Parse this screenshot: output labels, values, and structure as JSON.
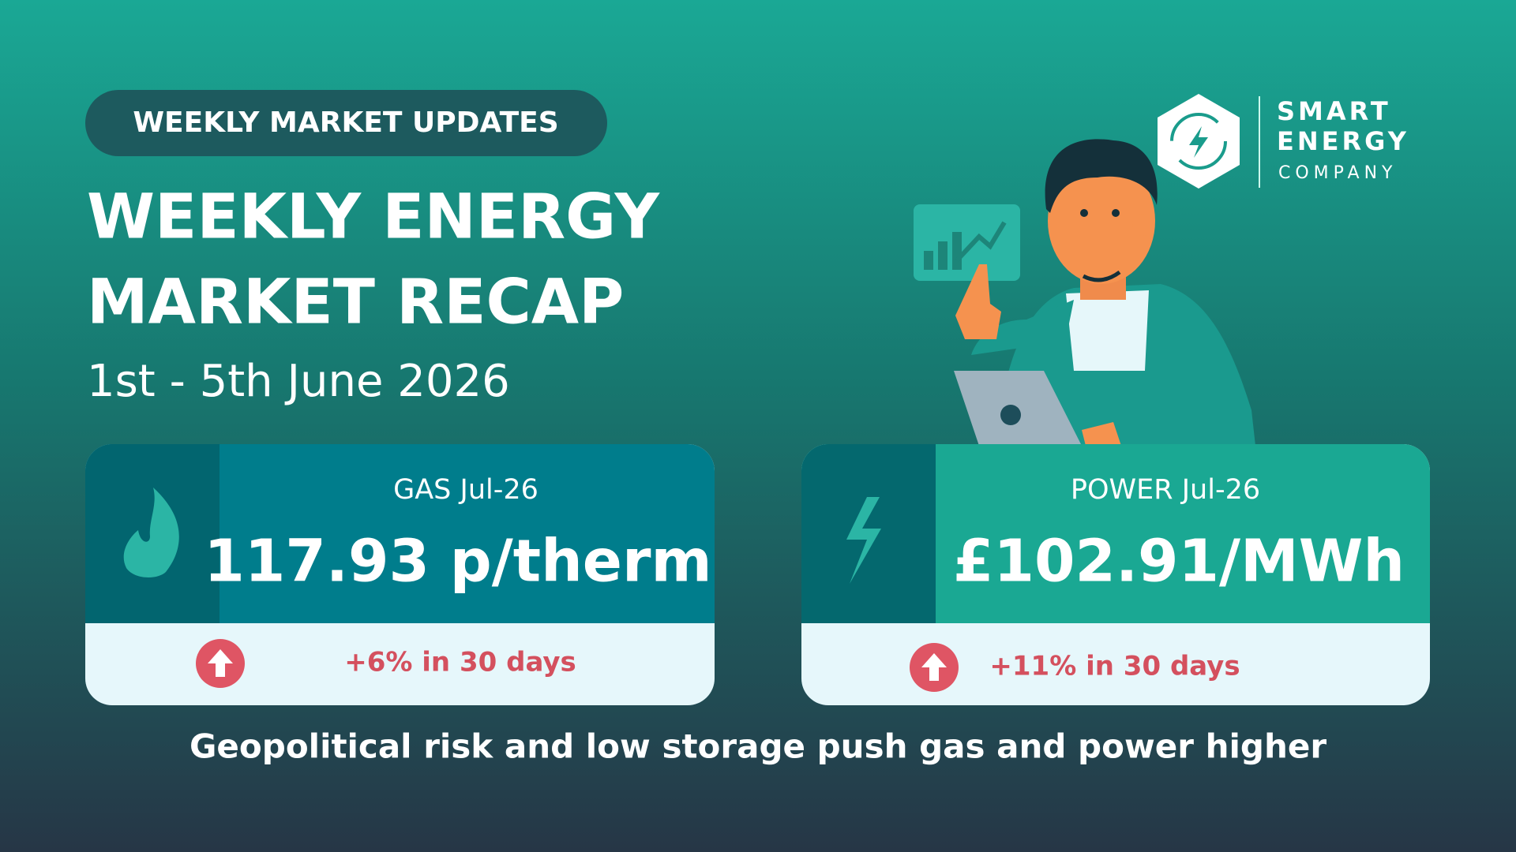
{
  "badge": "WEEKLY MARKET UPDATES",
  "title": [
    "WEEKLY ENERGY",
    "MARKET RECAP"
  ],
  "date_range": "1st - 5th June 2026",
  "logo": {
    "line1": "SMART",
    "line2": "ENERGY",
    "line3": "COMPANY"
  },
  "cards": [
    {
      "label": "GAS Jul-26",
      "value": "117.93 p/therm",
      "change": "+6% in 30 days"
    },
    {
      "label": "POWER Jul-26",
      "value": "£102.91/MWh",
      "change": "+11% in 30 days"
    }
  ],
  "footer": "Geopolitical risk and low storage push gas and power higher"
}
